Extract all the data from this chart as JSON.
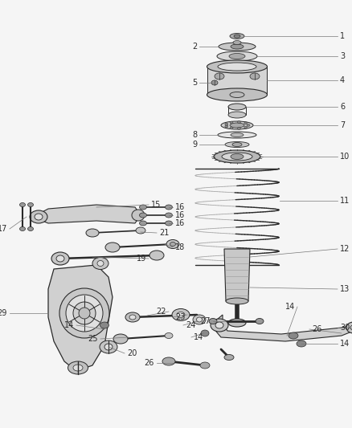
{
  "bg_color": "#f5f5f5",
  "fg_color": "#2a2a2a",
  "mid_color": "#888888",
  "light_color": "#cccccc",
  "figsize": [
    4.38,
    5.33
  ],
  "dpi": 100,
  "label_fs": 7.0,
  "lw_main": 0.8,
  "lw_thick": 1.5,
  "lw_thin": 0.5
}
